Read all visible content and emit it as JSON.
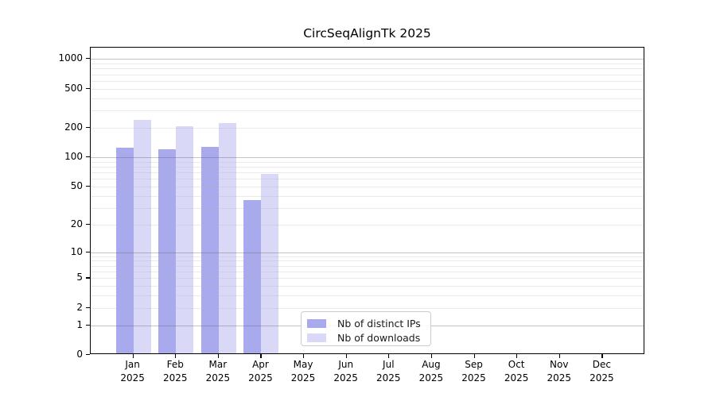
{
  "chart_data": {
    "type": "bar",
    "title": "CircSeqAlignTk 2025",
    "categories": [
      "Jan",
      "Feb",
      "Mar",
      "Apr",
      "May",
      "Jun",
      "Jul",
      "Aug",
      "Sep",
      "Oct",
      "Nov",
      "Dec"
    ],
    "category_year": "2025",
    "series": [
      {
        "name": "Nb of distinct IPs",
        "color": "#a9a9ee",
        "values": [
          120,
          117,
          122,
          35,
          0,
          0,
          0,
          0,
          0,
          0,
          0,
          0
        ]
      },
      {
        "name": "Nb of downloads",
        "color": "#d9d9f7",
        "values": [
          230,
          200,
          215,
          65,
          0,
          0,
          0,
          0,
          0,
          0,
          0,
          0
        ]
      }
    ],
    "y_ticks": [
      0,
      1,
      2,
      5,
      10,
      20,
      50,
      100,
      200,
      500,
      1000
    ],
    "y_scale": "log1p",
    "ylim": [
      0,
      1290
    ],
    "grid": true,
    "grid_major_at": [
      1,
      10,
      100,
      1000
    ],
    "legend_position": "inside-bottom-center",
    "xlabel": "",
    "ylabel": ""
  },
  "colors": {
    "background": "#ffffff",
    "axis": "#000000",
    "grid_minor": "#ececec",
    "grid_major": "#c6c6c6",
    "distinct_ips_bar": "#a9a9ee",
    "downloads_bar": "#d9d9f7",
    "legend_border": "#cccccc"
  }
}
